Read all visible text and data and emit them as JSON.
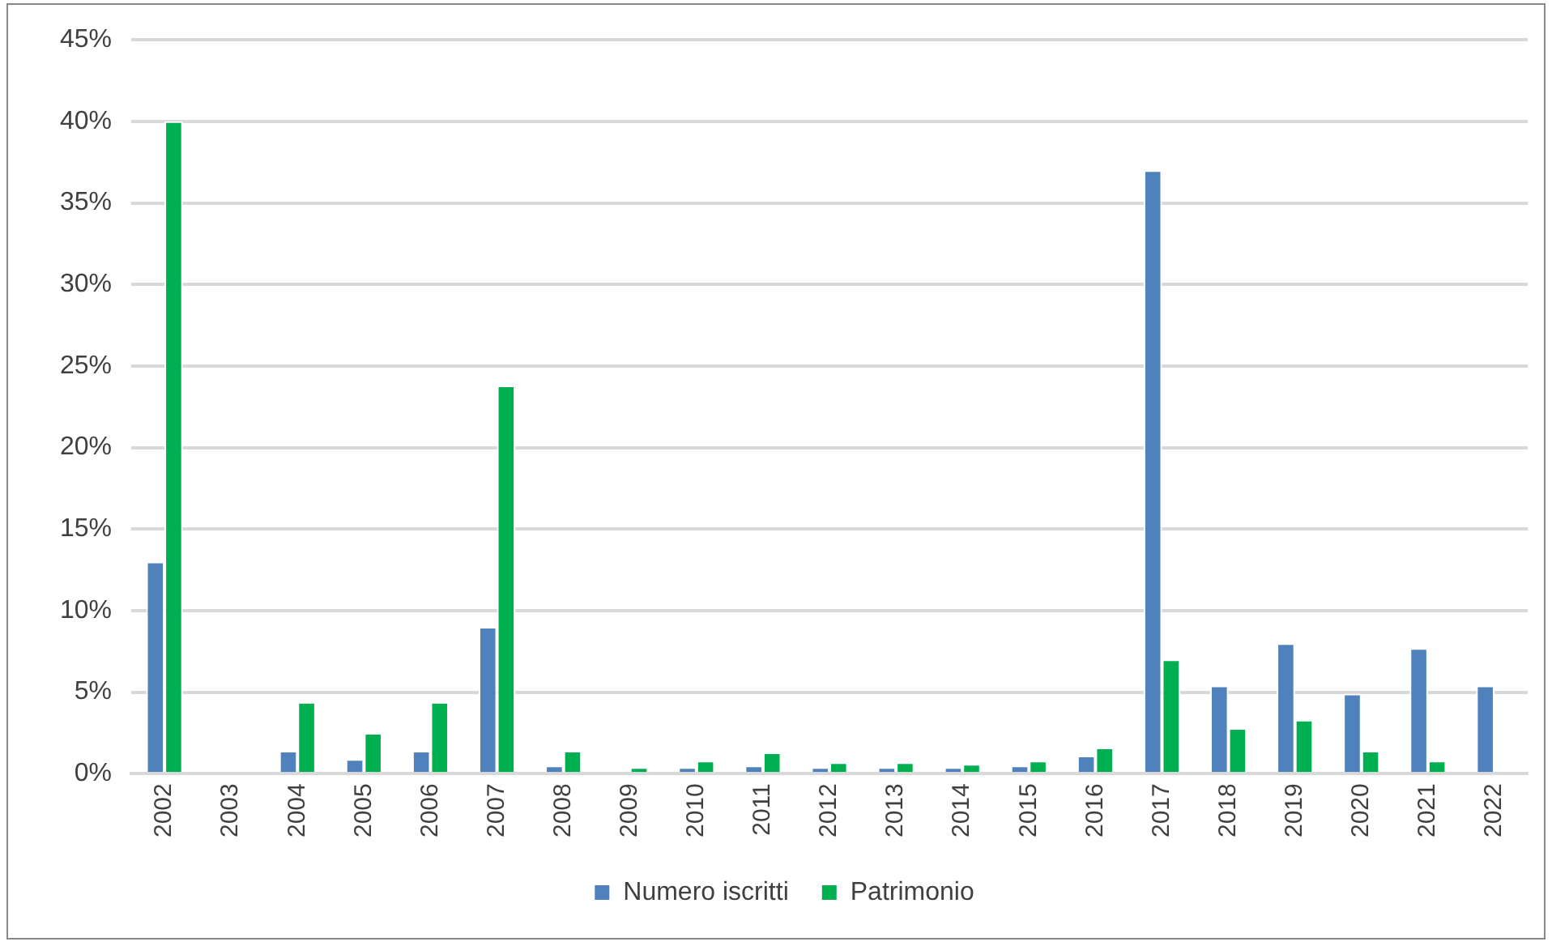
{
  "chart_data": {
    "type": "bar",
    "categories": [
      "2002",
      "2003",
      "2004",
      "2005",
      "2006",
      "2007",
      "2008",
      "2009",
      "2010",
      "2011",
      "2012",
      "2013",
      "2014",
      "2015",
      "2016",
      "2017",
      "2018",
      "2019",
      "2020",
      "2021",
      "2022"
    ],
    "series": [
      {
        "name": "Numero iscritti",
        "color": "#4f81bd",
        "values": [
          13,
          0,
          1.4,
          0.9,
          1.4,
          9,
          0.5,
          0,
          0.4,
          0.5,
          0.4,
          0.4,
          0.4,
          0.5,
          1.1,
          37,
          5.4,
          8,
          4.9,
          7.7,
          5.4
        ]
      },
      {
        "name": "Patrimonio",
        "color": "#00b050",
        "values": [
          40,
          0,
          4.4,
          2.5,
          4.4,
          23.8,
          1.4,
          0.4,
          0.8,
          1.3,
          0.7,
          0.7,
          0.6,
          0.8,
          1.6,
          7,
          2.8,
          3.3,
          1.4,
          0.8,
          0
        ]
      }
    ],
    "ylim": [
      0,
      45
    ],
    "yticks": [
      {
        "value": 0,
        "label": "0%"
      },
      {
        "value": 5,
        "label": "5%"
      },
      {
        "value": 10,
        "label": "10%"
      },
      {
        "value": 15,
        "label": "15%"
      },
      {
        "value": 20,
        "label": "20%"
      },
      {
        "value": 25,
        "label": "25%"
      },
      {
        "value": 30,
        "label": "30%"
      },
      {
        "value": 35,
        "label": "35%"
      },
      {
        "value": 40,
        "label": "40%"
      },
      {
        "value": 45,
        "label": "45%"
      }
    ],
    "grid": "y",
    "legend": "bottom"
  }
}
